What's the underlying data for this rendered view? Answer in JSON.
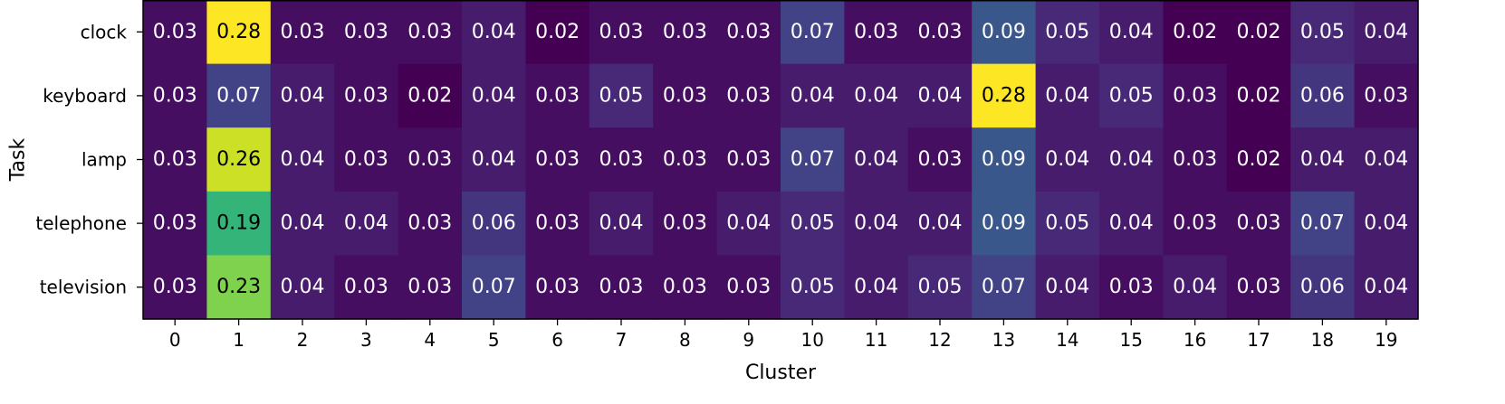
{
  "chart_data": {
    "type": "heatmap",
    "title": "",
    "xlabel": "Cluster",
    "ylabel": "Task",
    "x": [
      "0",
      "1",
      "2",
      "3",
      "4",
      "5",
      "6",
      "7",
      "8",
      "9",
      "10",
      "11",
      "12",
      "13",
      "14",
      "15",
      "16",
      "17",
      "18",
      "19"
    ],
    "y": [
      "clock",
      "keyboard",
      "lamp",
      "telephone",
      "television"
    ],
    "values": [
      [
        0.03,
        0.28,
        0.03,
        0.03,
        0.03,
        0.04,
        0.02,
        0.03,
        0.03,
        0.03,
        0.07,
        0.03,
        0.03,
        0.09,
        0.05,
        0.04,
        0.02,
        0.02,
        0.05,
        0.04
      ],
      [
        0.03,
        0.07,
        0.04,
        0.03,
        0.02,
        0.04,
        0.03,
        0.05,
        0.03,
        0.03,
        0.04,
        0.04,
        0.04,
        0.28,
        0.04,
        0.05,
        0.03,
        0.02,
        0.06,
        0.03
      ],
      [
        0.03,
        0.26,
        0.04,
        0.03,
        0.03,
        0.04,
        0.03,
        0.03,
        0.03,
        0.03,
        0.07,
        0.04,
        0.03,
        0.09,
        0.04,
        0.04,
        0.03,
        0.02,
        0.04,
        0.04
      ],
      [
        0.03,
        0.19,
        0.04,
        0.04,
        0.03,
        0.06,
        0.03,
        0.04,
        0.03,
        0.04,
        0.05,
        0.04,
        0.04,
        0.09,
        0.05,
        0.04,
        0.03,
        0.03,
        0.07,
        0.04
      ],
      [
        0.03,
        0.23,
        0.04,
        0.03,
        0.03,
        0.07,
        0.03,
        0.03,
        0.03,
        0.03,
        0.05,
        0.04,
        0.05,
        0.07,
        0.04,
        0.03,
        0.04,
        0.03,
        0.06,
        0.04
      ]
    ],
    "colormap": "viridis",
    "grid": false
  }
}
